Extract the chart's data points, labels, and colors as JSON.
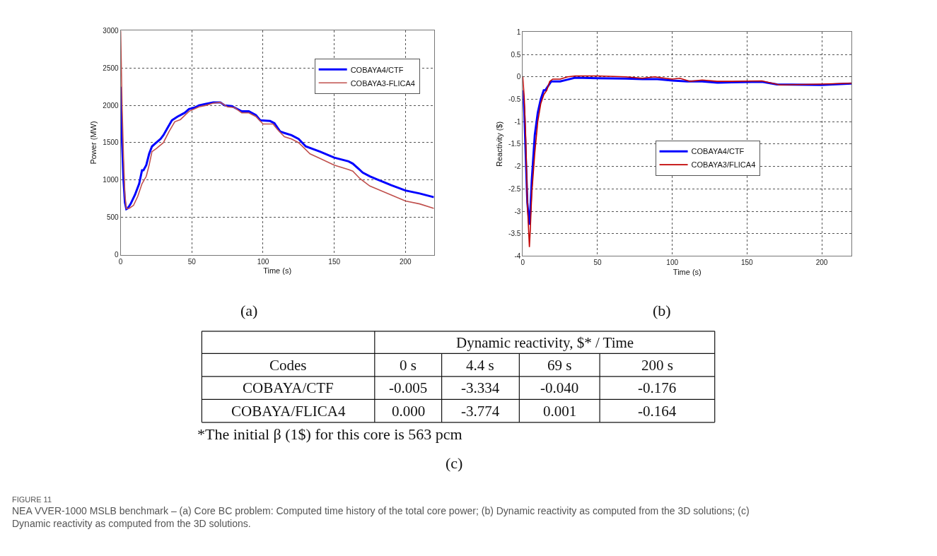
{
  "chart_data": [
    {
      "type": "line",
      "xlabel": "Time (s)",
      "ylabel": "Power (MW)",
      "xlim": [
        0,
        220
      ],
      "xticks": [
        0,
        50,
        100,
        150,
        200
      ],
      "ylim": [
        0,
        3000
      ],
      "yticks": [
        0,
        500,
        1000,
        1500,
        2000,
        2500,
        3000
      ],
      "grid": true,
      "legend": "top right",
      "annotations": [
        "(a)"
      ],
      "series": [
        {
          "name": "COBAYA4/CTF",
          "color": "#0000ff",
          "x": [
            0,
            1,
            2,
            3,
            4,
            5,
            7,
            10,
            13,
            15,
            16,
            18,
            20,
            22,
            25,
            28,
            30,
            33,
            36,
            40,
            45,
            48,
            52,
            55,
            60,
            65,
            70,
            73,
            78,
            85,
            90,
            95,
            98,
            105,
            108,
            112,
            115,
            120,
            125,
            130,
            140,
            150,
            160,
            163,
            170,
            175,
            180,
            190,
            200,
            210,
            220
          ],
          "values": [
            2250,
            1500,
            1000,
            700,
            610,
            620,
            680,
            800,
            950,
            1130,
            1130,
            1200,
            1350,
            1450,
            1500,
            1550,
            1600,
            1700,
            1800,
            1850,
            1900,
            1950,
            1970,
            2000,
            2020,
            2040,
            2040,
            2000,
            1990,
            1920,
            1920,
            1870,
            1800,
            1790,
            1760,
            1650,
            1630,
            1600,
            1550,
            1450,
            1380,
            1300,
            1250,
            1220,
            1100,
            1050,
            1010,
            930,
            860,
            820,
            770
          ]
        },
        {
          "name": "COBAYA3-FLICA4",
          "color": "#c0504d",
          "x": [
            0,
            1,
            2,
            3,
            4,
            6,
            9,
            12,
            15,
            18,
            20,
            22,
            25,
            30,
            34,
            38,
            42,
            48,
            55,
            60,
            65,
            70,
            75,
            80,
            85,
            90,
            95,
            100,
            107,
            110,
            115,
            120,
            125,
            133,
            140,
            150,
            160,
            163,
            168,
            175,
            180,
            190,
            200,
            210,
            220
          ],
          "values": [
            3000,
            2000,
            1300,
            800,
            620,
            620,
            660,
            780,
            950,
            1050,
            1200,
            1380,
            1420,
            1500,
            1650,
            1780,
            1810,
            1920,
            1980,
            2000,
            2030,
            2040,
            1980,
            1970,
            1900,
            1900,
            1850,
            1750,
            1750,
            1680,
            1580,
            1550,
            1500,
            1350,
            1290,
            1200,
            1140,
            1120,
            1020,
            920,
            880,
            800,
            720,
            680,
            620
          ]
        }
      ]
    },
    {
      "type": "line",
      "xlabel": "Time (s)",
      "ylabel": "Reactivity ($)",
      "xlim": [
        0,
        220
      ],
      "xticks": [
        0,
        50,
        100,
        150,
        200
      ],
      "ylim": [
        -4,
        1
      ],
      "yticks": [
        -4,
        -3.5,
        -3,
        -2.5,
        -2,
        -1.5,
        -1,
        -0.5,
        0,
        0.5,
        1
      ],
      "grid": true,
      "legend": "right",
      "annotations": [
        "(b)"
      ],
      "series": [
        {
          "name": "COBAYA4/CTF",
          "color": "#0000ff",
          "x": [
            0,
            1,
            2,
            3,
            4.4,
            5,
            6,
            8,
            10,
            12,
            14,
            15,
            17,
            19,
            25,
            30,
            35,
            50,
            69,
            80,
            90,
            100,
            110,
            120,
            130,
            140,
            160,
            170,
            200,
            220
          ],
          "values": [
            -0.3,
            -0.8,
            -1.8,
            -2.8,
            -3.3,
            -3.0,
            -2.3,
            -1.3,
            -0.8,
            -0.5,
            -0.3,
            -0.3,
            -0.2,
            -0.1,
            -0.1,
            -0.06,
            -0.02,
            -0.03,
            -0.04,
            -0.05,
            -0.05,
            -0.08,
            -0.1,
            -0.1,
            -0.13,
            -0.12,
            -0.11,
            -0.17,
            -0.18,
            -0.15
          ]
        },
        {
          "name": "COBAYA3/FLICA4",
          "color": "#c00000",
          "x": [
            0,
            1,
            2,
            3,
            4.4,
            5,
            6,
            8,
            10,
            12,
            14,
            16,
            18,
            20,
            25,
            30,
            35,
            50,
            69,
            80,
            88,
            100,
            105,
            112,
            120,
            130,
            140,
            160,
            172,
            200,
            220
          ],
          "values": [
            0,
            -0.5,
            -1.4,
            -2.8,
            -3.8,
            -3.4,
            -2.6,
            -1.7,
            -1.0,
            -0.6,
            -0.4,
            -0.3,
            -0.1,
            -0.05,
            -0.05,
            0,
            0.02,
            0.02,
            0,
            -0.03,
            0,
            -0.05,
            -0.03,
            -0.1,
            -0.07,
            -0.1,
            -0.1,
            -0.09,
            -0.18,
            -0.16,
            -0.14
          ]
        }
      ]
    },
    {
      "type": "other",
      "annotations": [
        "Dynamic reactivity, $* / Time",
        "Codes",
        "0 s",
        "4.4 s",
        "69 s",
        "200 s",
        "COBAYA/CTF",
        "-0.005",
        "-3.334",
        "-0.040",
        "-0.176",
        "COBAYA/FLICA4",
        "0.000",
        "-3.774",
        "0.001",
        "-0.164",
        "*The initial β (1$) for this core is 563 pcm",
        "(c)",
        "FIGURE 11",
        "NEA VVER-1000 MSLB benchmark – (a) Core BC problem: Computed time history of the total core power; (b) Dynamic reactivity as computed from the 3D solutions; (c) Dynamic reactivity as computed from the 3D solutions."
      ]
    }
  ]
}
